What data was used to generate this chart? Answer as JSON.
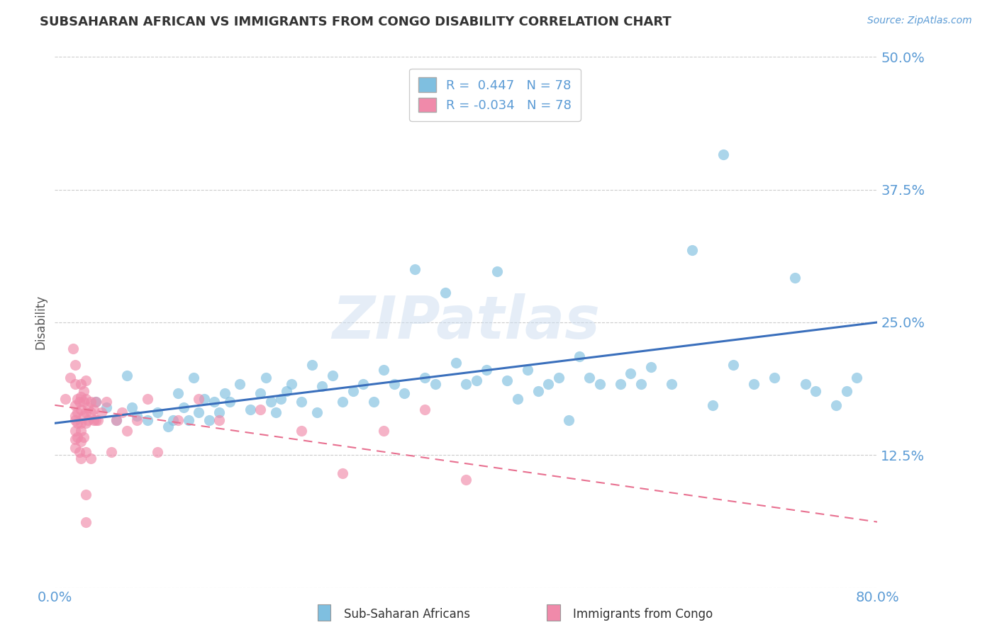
{
  "title": "SUBSAHARAN AFRICAN VS IMMIGRANTS FROM CONGO DISABILITY CORRELATION CHART",
  "source": "Source: ZipAtlas.com",
  "xlabel": "",
  "ylabel": "Disability",
  "xlim": [
    0.0,
    0.8
  ],
  "ylim": [
    0.0,
    0.5
  ],
  "yticks": [
    0.0,
    0.125,
    0.25,
    0.375,
    0.5
  ],
  "ytick_labels": [
    "",
    "12.5%",
    "25.0%",
    "37.5%",
    "50.0%"
  ],
  "xtick_vals": [
    0.0,
    0.8
  ],
  "xtick_labels": [
    "0.0%",
    "80.0%"
  ],
  "watermark": "ZIPatlas",
  "legend_label1": "Sub-Saharan Africans",
  "legend_label2": "Immigrants from Congo",
  "blue_color": "#7fbfe0",
  "pink_color": "#f08aaa",
  "line_blue": "#3a6fbc",
  "line_pink": "#e87090",
  "title_color": "#333333",
  "axis_color": "#5b9bd5",
  "grid_color": "#cccccc",
  "background_color": "#ffffff",
  "blue_scatter": [
    [
      0.04,
      0.175
    ],
    [
      0.05,
      0.17
    ],
    [
      0.06,
      0.158
    ],
    [
      0.07,
      0.2
    ],
    [
      0.075,
      0.17
    ],
    [
      0.08,
      0.162
    ],
    [
      0.09,
      0.158
    ],
    [
      0.1,
      0.165
    ],
    [
      0.11,
      0.152
    ],
    [
      0.115,
      0.158
    ],
    [
      0.12,
      0.183
    ],
    [
      0.125,
      0.17
    ],
    [
      0.13,
      0.158
    ],
    [
      0.135,
      0.198
    ],
    [
      0.14,
      0.165
    ],
    [
      0.145,
      0.178
    ],
    [
      0.15,
      0.158
    ],
    [
      0.155,
      0.175
    ],
    [
      0.16,
      0.165
    ],
    [
      0.165,
      0.183
    ],
    [
      0.17,
      0.175
    ],
    [
      0.18,
      0.192
    ],
    [
      0.19,
      0.168
    ],
    [
      0.2,
      0.183
    ],
    [
      0.205,
      0.198
    ],
    [
      0.21,
      0.175
    ],
    [
      0.215,
      0.165
    ],
    [
      0.22,
      0.178
    ],
    [
      0.225,
      0.185
    ],
    [
      0.23,
      0.192
    ],
    [
      0.24,
      0.175
    ],
    [
      0.25,
      0.21
    ],
    [
      0.255,
      0.165
    ],
    [
      0.26,
      0.19
    ],
    [
      0.27,
      0.2
    ],
    [
      0.28,
      0.175
    ],
    [
      0.29,
      0.185
    ],
    [
      0.3,
      0.192
    ],
    [
      0.31,
      0.175
    ],
    [
      0.32,
      0.205
    ],
    [
      0.33,
      0.192
    ],
    [
      0.34,
      0.183
    ],
    [
      0.35,
      0.3
    ],
    [
      0.36,
      0.198
    ],
    [
      0.37,
      0.192
    ],
    [
      0.38,
      0.278
    ],
    [
      0.39,
      0.212
    ],
    [
      0.4,
      0.192
    ],
    [
      0.41,
      0.195
    ],
    [
      0.42,
      0.205
    ],
    [
      0.43,
      0.298
    ],
    [
      0.44,
      0.195
    ],
    [
      0.45,
      0.178
    ],
    [
      0.46,
      0.205
    ],
    [
      0.47,
      0.185
    ],
    [
      0.48,
      0.192
    ],
    [
      0.49,
      0.198
    ],
    [
      0.5,
      0.158
    ],
    [
      0.51,
      0.218
    ],
    [
      0.52,
      0.198
    ],
    [
      0.53,
      0.192
    ],
    [
      0.55,
      0.192
    ],
    [
      0.56,
      0.202
    ],
    [
      0.57,
      0.192
    ],
    [
      0.58,
      0.208
    ],
    [
      0.6,
      0.192
    ],
    [
      0.62,
      0.318
    ],
    [
      0.64,
      0.172
    ],
    [
      0.65,
      0.408
    ],
    [
      0.66,
      0.21
    ],
    [
      0.68,
      0.192
    ],
    [
      0.7,
      0.198
    ],
    [
      0.72,
      0.292
    ],
    [
      0.73,
      0.192
    ],
    [
      0.74,
      0.185
    ],
    [
      0.76,
      0.172
    ],
    [
      0.77,
      0.185
    ],
    [
      0.78,
      0.198
    ]
  ],
  "pink_scatter": [
    [
      0.01,
      0.178
    ],
    [
      0.015,
      0.198
    ],
    [
      0.018,
      0.225
    ],
    [
      0.02,
      0.21
    ],
    [
      0.02,
      0.192
    ],
    [
      0.02,
      0.172
    ],
    [
      0.02,
      0.158
    ],
    [
      0.02,
      0.148
    ],
    [
      0.02,
      0.14
    ],
    [
      0.02,
      0.132
    ],
    [
      0.02,
      0.162
    ],
    [
      0.022,
      0.178
    ],
    [
      0.022,
      0.165
    ],
    [
      0.022,
      0.155
    ],
    [
      0.022,
      0.142
    ],
    [
      0.024,
      0.175
    ],
    [
      0.024,
      0.128
    ],
    [
      0.025,
      0.18
    ],
    [
      0.025,
      0.168
    ],
    [
      0.025,
      0.155
    ],
    [
      0.025,
      0.192
    ],
    [
      0.025,
      0.122
    ],
    [
      0.025,
      0.148
    ],
    [
      0.025,
      0.138
    ],
    [
      0.028,
      0.162
    ],
    [
      0.028,
      0.175
    ],
    [
      0.028,
      0.185
    ],
    [
      0.028,
      0.142
    ],
    [
      0.03,
      0.155
    ],
    [
      0.03,
      0.165
    ],
    [
      0.03,
      0.178
    ],
    [
      0.03,
      0.128
    ],
    [
      0.03,
      0.195
    ],
    [
      0.03,
      0.062
    ],
    [
      0.03,
      0.088
    ],
    [
      0.032,
      0.17
    ],
    [
      0.032,
      0.158
    ],
    [
      0.035,
      0.165
    ],
    [
      0.035,
      0.122
    ],
    [
      0.035,
      0.175
    ],
    [
      0.038,
      0.158
    ],
    [
      0.038,
      0.168
    ],
    [
      0.04,
      0.158
    ],
    [
      0.04,
      0.175
    ],
    [
      0.042,
      0.158
    ],
    [
      0.045,
      0.165
    ],
    [
      0.05,
      0.175
    ],
    [
      0.055,
      0.128
    ],
    [
      0.06,
      0.158
    ],
    [
      0.065,
      0.165
    ],
    [
      0.07,
      0.148
    ],
    [
      0.08,
      0.158
    ],
    [
      0.09,
      0.178
    ],
    [
      0.1,
      0.128
    ],
    [
      0.12,
      0.158
    ],
    [
      0.14,
      0.178
    ],
    [
      0.16,
      0.158
    ],
    [
      0.2,
      0.168
    ],
    [
      0.24,
      0.148
    ],
    [
      0.28,
      0.108
    ],
    [
      0.32,
      0.148
    ],
    [
      0.36,
      0.168
    ],
    [
      0.4,
      0.102
    ]
  ]
}
